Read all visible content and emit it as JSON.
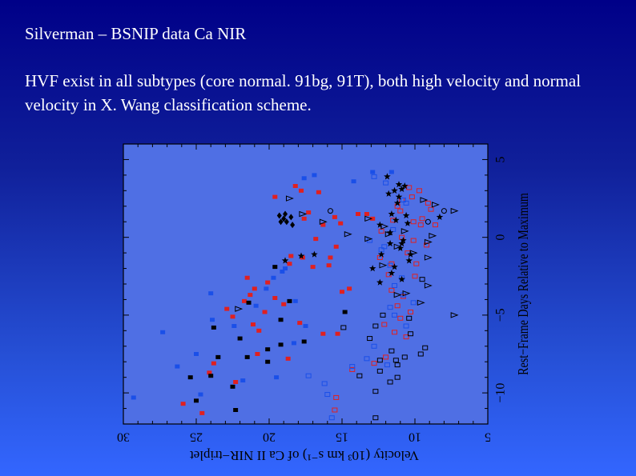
{
  "slide": {
    "title": "Silverman – BSNIP data Ca NIR",
    "body": "HVF exist in all subtypes (core normal. 91bg, 91T), both high velocity and normal velocity in X. Wang classification scheme."
  },
  "colors": {
    "red": "#e02020",
    "blue": "#1a4fe8",
    "black": "#000000"
  },
  "chart_data": {
    "type": "scatter",
    "xlabel": "Velocity (10³ km s⁻¹) of Ca II NIR−triplet",
    "ylabel": "Rest−Frame Days Relative to Maximum",
    "xlim": [
      30,
      5
    ],
    "ylim": [
      -12,
      6
    ],
    "x_ticks": [
      "30",
      "25",
      "20",
      "15",
      "10",
      "5"
    ],
    "y_ticks": [
      "−10",
      "−5",
      "0",
      "5"
    ],
    "orientation": "rotated-90",
    "series": [
      {
        "color": "red",
        "marker": "square-filled",
        "points": [
          [
            18.2,
            3.3
          ],
          [
            17.8,
            3.0
          ],
          [
            16.6,
            2.9
          ],
          [
            19.6,
            2.6
          ],
          [
            15.5,
            1.3
          ],
          [
            13.9,
            1.5
          ],
          [
            12.9,
            1.2
          ],
          [
            15.1,
            0.9
          ],
          [
            16.8,
            -0.1
          ],
          [
            15.4,
            -0.6
          ],
          [
            15.8,
            -1.3
          ],
          [
            17.7,
            -1.3
          ],
          [
            17.3,
            1.6
          ],
          [
            17.6,
            1.2
          ],
          [
            16.3,
            0.8
          ],
          [
            13.3,
            1.5
          ],
          [
            15.9,
            -1.8
          ],
          [
            17.0,
            -1.9
          ],
          [
            18.6,
            -1.7
          ],
          [
            21.0,
            -3.3
          ],
          [
            21.3,
            -3.7
          ],
          [
            22.9,
            -4.6
          ],
          [
            20.3,
            -4.8
          ],
          [
            19.6,
            -3.9
          ],
          [
            20.7,
            -6.0
          ],
          [
            17.9,
            -5.5
          ],
          [
            15.3,
            -6.2
          ],
          [
            16.3,
            -6.2
          ],
          [
            20.8,
            -7.5
          ],
          [
            23.8,
            -8.1
          ],
          [
            24.1,
            -8.7
          ],
          [
            22.3,
            -9.3
          ],
          [
            25.9,
            -10.7
          ],
          [
            24.6,
            -11.3
          ],
          [
            18.7,
            -7.8
          ],
          [
            15.0,
            -3.5
          ],
          [
            18.5,
            -1.2
          ],
          [
            21.5,
            -2.6
          ],
          [
            20.1,
            -2.9
          ],
          [
            21.7,
            -4.1
          ],
          [
            14.5,
            -3.3
          ],
          [
            22.5,
            -5.1
          ],
          [
            21.1,
            -5.6
          ],
          [
            19.0,
            -4.3
          ]
        ]
      },
      {
        "color": "red",
        "marker": "square-open",
        "points": [
          [
            10.4,
            3.2
          ],
          [
            9.7,
            3.0
          ],
          [
            10.2,
            2.6
          ],
          [
            10.9,
            2.4
          ],
          [
            11.2,
            2.0
          ],
          [
            9.1,
            2.2
          ],
          [
            8.9,
            1.8
          ],
          [
            11.5,
            1.1
          ],
          [
            10.1,
            1.0
          ],
          [
            9.6,
            0.8
          ],
          [
            10.9,
            0.0
          ],
          [
            9.2,
            -0.5
          ],
          [
            10.5,
            -1.0
          ],
          [
            9.9,
            -1.7
          ],
          [
            11.8,
            -2.4
          ],
          [
            10.0,
            -2.5
          ],
          [
            11.6,
            -3.4
          ],
          [
            11.2,
            -4.4
          ],
          [
            10.3,
            -4.8
          ],
          [
            11.0,
            -5.2
          ],
          [
            12.1,
            -5.6
          ],
          [
            11.4,
            -6.1
          ],
          [
            12.8,
            -8.1
          ],
          [
            14.3,
            -8.5
          ],
          [
            15.4,
            -10.3
          ],
          [
            15.5,
            -11.1
          ],
          [
            12.0,
            -7.7
          ],
          [
            10.6,
            -6.4
          ],
          [
            10.8,
            -3.8
          ],
          [
            12.4,
            -1.3
          ],
          [
            11.6,
            -1.7
          ],
          [
            12.3,
            0.4
          ],
          [
            11.0,
            1.7
          ],
          [
            9.5,
            1.2
          ],
          [
            8.6,
            0.8
          ],
          [
            10.1,
            -0.2
          ]
        ]
      },
      {
        "color": "blue",
        "marker": "square-filled",
        "points": [
          [
            16.9,
            4.0
          ],
          [
            14.2,
            3.6
          ],
          [
            12.9,
            4.2
          ],
          [
            11.6,
            4.2
          ],
          [
            17.6,
            3.8
          ],
          [
            19.1,
            -2.2
          ],
          [
            19.7,
            -2.6
          ],
          [
            24.0,
            -3.6
          ],
          [
            18.2,
            -4.1
          ],
          [
            23.9,
            -5.3
          ],
          [
            22.4,
            -5.7
          ],
          [
            27.3,
            -6.1
          ],
          [
            26.3,
            -8.3
          ],
          [
            21.8,
            -9.2
          ],
          [
            24.7,
            -10.1
          ],
          [
            19.5,
            -9.0
          ],
          [
            29.3,
            -10.3
          ],
          [
            20.2,
            -3.3
          ],
          [
            18.9,
            -2.0
          ],
          [
            25.0,
            -7.5
          ],
          [
            20.9,
            -4.4
          ],
          [
            17.5,
            -5.7
          ],
          [
            18.3,
            -6.8
          ]
        ]
      },
      {
        "color": "blue",
        "marker": "square-open",
        "points": [
          [
            12.8,
            3.9
          ],
          [
            12.0,
            3.5
          ],
          [
            10.8,
            2.4
          ],
          [
            10.6,
            2.2
          ],
          [
            11.5,
            0.5
          ],
          [
            12.3,
            -0.8
          ],
          [
            11.7,
            -1.8
          ],
          [
            11.4,
            -3.1
          ],
          [
            10.8,
            -3.7
          ],
          [
            10.1,
            -4.2
          ],
          [
            11.7,
            -4.5
          ],
          [
            11.4,
            -5.0
          ],
          [
            14.3,
            -8.3
          ],
          [
            13.3,
            -7.8
          ],
          [
            16.2,
            -9.4
          ],
          [
            17.3,
            -8.9
          ],
          [
            12.8,
            -7.0
          ],
          [
            16.0,
            -10.1
          ],
          [
            15.7,
            -11.6
          ],
          [
            13.1,
            -0.2
          ],
          [
            12.1,
            -0.6
          ],
          [
            10.9,
            -2.6
          ],
          [
            11.9,
            -8.2
          ],
          [
            10.6,
            -5.7
          ]
        ]
      },
      {
        "color": "black",
        "marker": "square-filled",
        "points": [
          [
            19.6,
            -1.9
          ],
          [
            21.4,
            -4.2
          ],
          [
            23.8,
            -5.8
          ],
          [
            22.0,
            -6.5
          ],
          [
            19.2,
            -6.9
          ],
          [
            21.5,
            -7.7
          ],
          [
            23.5,
            -7.7
          ],
          [
            24.0,
            -8.9
          ],
          [
            22.5,
            -9.6
          ],
          [
            25.4,
            -9.0
          ],
          [
            25.0,
            -10.5
          ],
          [
            20.1,
            -7.2
          ],
          [
            22.3,
            -11.1
          ],
          [
            19.2,
            -5.3
          ],
          [
            18.6,
            -4.1
          ],
          [
            17.6,
            -6.7
          ],
          [
            14.8,
            -4.8
          ],
          [
            20.1,
            -8.0
          ]
        ]
      },
      {
        "color": "black",
        "marker": "square-open",
        "points": [
          [
            14.9,
            -5.8
          ],
          [
            13.1,
            -6.5
          ],
          [
            12.4,
            -7.9
          ],
          [
            11.2,
            -8.2
          ],
          [
            11.3,
            -7.9
          ],
          [
            12.4,
            -8.6
          ],
          [
            10.7,
            -7.7
          ],
          [
            9.3,
            -7.1
          ],
          [
            9.6,
            -7.5
          ],
          [
            12.7,
            -5.7
          ],
          [
            10.3,
            -6.2
          ],
          [
            11.6,
            -7.3
          ],
          [
            12.7,
            -9.9
          ],
          [
            11.7,
            -9.3
          ],
          [
            11.2,
            -9.0
          ],
          [
            13.8,
            -8.9
          ],
          [
            12.7,
            -11.6
          ],
          [
            10.4,
            -5.2
          ],
          [
            12.2,
            -5.0
          ],
          [
            9.5,
            -2.7
          ]
        ]
      },
      {
        "color": "black",
        "marker": "star",
        "points": [
          [
            11.1,
            3.4
          ],
          [
            10.9,
            3.1
          ],
          [
            11.8,
            2.8
          ],
          [
            11.2,
            2.2
          ],
          [
            11.6,
            1.5
          ],
          [
            10.6,
            1.4
          ],
          [
            11.3,
            1.1
          ],
          [
            12.4,
            0.8
          ],
          [
            11.7,
            0.3
          ],
          [
            10.8,
            -0.2
          ],
          [
            11.0,
            -0.7
          ],
          [
            12.3,
            -1.1
          ],
          [
            10.4,
            -1.5
          ],
          [
            11.4,
            -1.9
          ],
          [
            11.6,
            -2.3
          ],
          [
            10.9,
            -2.7
          ],
          [
            12.4,
            -2.9
          ],
          [
            18.9,
            -1.5
          ],
          [
            17.8,
            -1.2
          ],
          [
            16.9,
            -1.1
          ],
          [
            10.7,
            3.3
          ],
          [
            11.1,
            2.6
          ],
          [
            10.3,
            -1.1
          ],
          [
            12.9,
            -2.0
          ],
          [
            10.5,
            0.9
          ],
          [
            11.7,
            -0.4
          ],
          [
            10.9,
            -0.4
          ],
          [
            8.3,
            1.3
          ],
          [
            11.9,
            3.9
          ],
          [
            11.4,
            3.0
          ]
        ]
      },
      {
        "color": "black",
        "marker": "triangle-open",
        "points": [
          [
            12.1,
            0.7
          ],
          [
            13.2,
            -0.1
          ],
          [
            10.6,
            -3.6
          ],
          [
            9.1,
            -3.1
          ],
          [
            9.6,
            -4.2
          ],
          [
            13.2,
            1.2
          ],
          [
            14.6,
            0.2
          ],
          [
            11.8,
            0.2
          ],
          [
            11.2,
            -0.6
          ],
          [
            10.1,
            -1.0
          ],
          [
            12.2,
            -1.8
          ],
          [
            11.2,
            -3.7
          ],
          [
            10.7,
            0.4
          ],
          [
            9.1,
            -1.3
          ],
          [
            7.3,
            -5.0
          ],
          [
            8.8,
            0.1
          ],
          [
            9.1,
            -0.3
          ],
          [
            22.1,
            -4.6
          ],
          [
            18.6,
            2.5
          ],
          [
            17.7,
            1.5
          ],
          [
            16.3,
            1.0
          ],
          [
            9.4,
            2.4
          ],
          [
            8.6,
            2.1
          ],
          [
            7.3,
            1.7
          ]
        ]
      },
      {
        "color": "black",
        "marker": "diamond-filled",
        "points": [
          [
            19.0,
            1.2
          ],
          [
            18.8,
            1.0
          ],
          [
            19.3,
            1.4
          ],
          [
            18.5,
            1.3
          ],
          [
            19.2,
            1.0
          ],
          [
            18.4,
            0.8
          ],
          [
            18.9,
            1.5
          ]
        ]
      },
      {
        "color": "black",
        "marker": "circle-open",
        "points": [
          [
            8.0,
            1.7
          ],
          [
            9.1,
            1.0
          ],
          [
            15.8,
            1.7
          ]
        ]
      }
    ]
  }
}
